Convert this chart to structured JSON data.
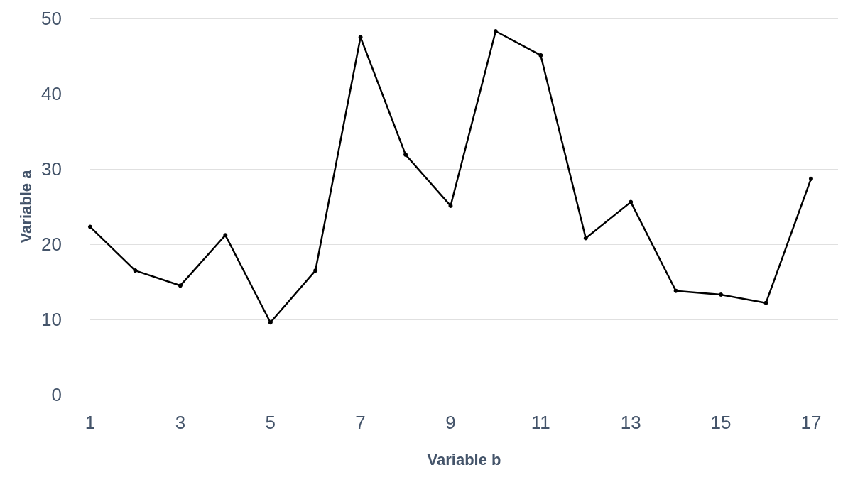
{
  "chart_data": {
    "type": "line",
    "xlabel": "Variable b",
    "ylabel": "Variable a",
    "x": [
      1,
      2,
      3,
      4,
      5,
      6,
      7,
      8,
      9,
      10,
      11,
      12,
      13,
      14,
      15,
      16,
      17
    ],
    "series": [
      {
        "color": "#000000",
        "values": [
          22.3,
          16.5,
          14.5,
          21.2,
          9.6,
          16.5,
          47.5,
          31.9,
          25.1,
          48.3,
          45.1,
          20.8,
          25.6,
          13.8,
          13.3,
          12.2,
          28.7
        ]
      }
    ],
    "xlim": [
      1,
      17.6
    ],
    "xticks": [
      1,
      3,
      5,
      7,
      9,
      11,
      13,
      15,
      17
    ],
    "ylim": [
      0,
      50
    ],
    "yticks": [
      0,
      10,
      20,
      30,
      40,
      50
    ],
    "grid": "y",
    "marker": "circle",
    "line_style": "solid"
  }
}
